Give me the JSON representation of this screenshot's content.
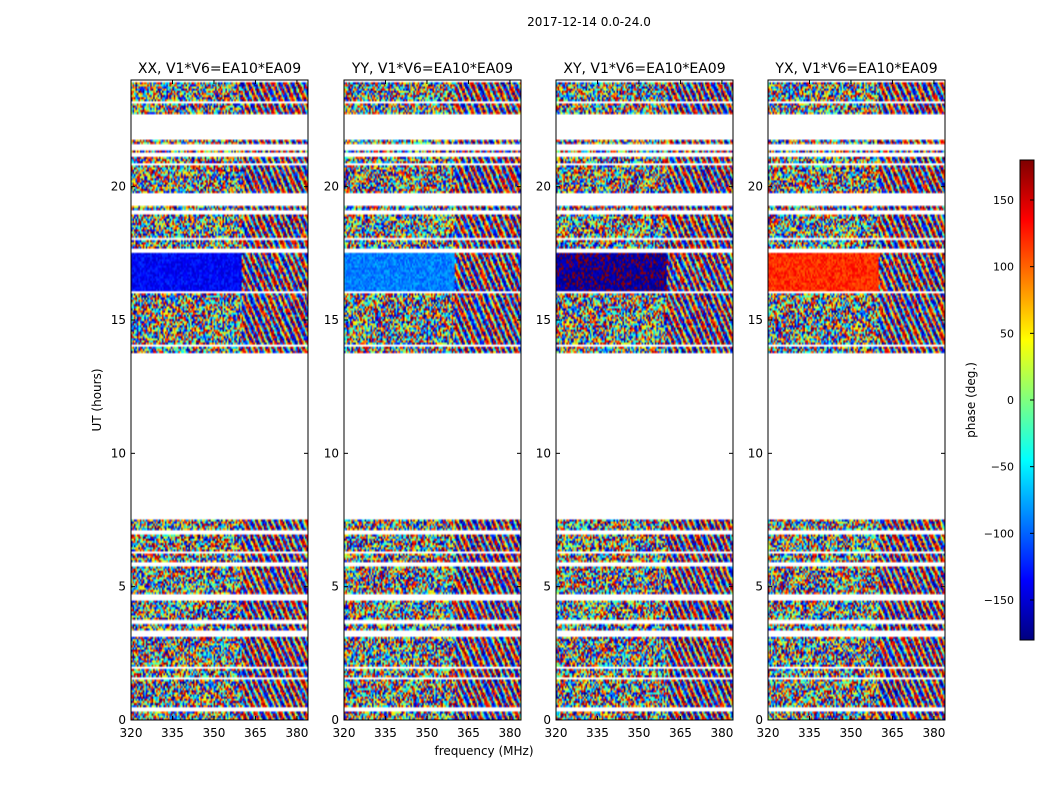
{
  "chart_data": {
    "type": "heatmap",
    "suptitle": "2017-12-14 0.0-24.0",
    "xlabel": "frequency (MHz)",
    "ylabel": "UT (hours)",
    "xlim": [
      320,
      384
    ],
    "ylim": [
      0,
      24
    ],
    "xticks": [
      320,
      335,
      350,
      365,
      380
    ],
    "yticks": [
      0,
      5,
      10,
      15,
      20
    ],
    "colorbar": {
      "label": "phase (deg.)",
      "range": [
        -180,
        180
      ],
      "ticks": [
        150,
        100,
        50,
        0,
        -50,
        -100,
        -150
      ],
      "tick_labels": [
        "150",
        "100",
        "50",
        "0",
        "−50",
        "−100",
        "−150"
      ],
      "colormap": [
        "#00007f",
        "#0000ff",
        "#007fff",
        "#00ffff",
        "#7fff7f",
        "#ffff00",
        "#ff7f00",
        "#ff0000",
        "#7f0000"
      ]
    },
    "panels": [
      {
        "title": "XX, V1*V6=EA10*EA09",
        "ordered_phase_deg": -135,
        "show_xlabel": false,
        "show_ylabel": true
      },
      {
        "title": "YY, V1*V6=EA10*EA09",
        "ordered_phase_deg": -90,
        "show_xlabel": true,
        "show_ylabel": false
      },
      {
        "title": "XY, V1*V6=EA10*EA09",
        "ordered_phase_deg": -170,
        "show_xlabel": false,
        "show_ylabel": false
      },
      {
        "title": "YX, V1*V6=EA10*EA09",
        "ordered_phase_deg": 120,
        "show_xlabel": false,
        "show_ylabel": false
      }
    ],
    "data_blocks_ut_hours": [
      {
        "start": 0.0,
        "end": 0.3
      },
      {
        "start": 0.5,
        "end": 1.5
      },
      {
        "start": 1.6,
        "end": 1.9
      },
      {
        "start": 2.0,
        "end": 3.1
      },
      {
        "start": 3.4,
        "end": 3.6
      },
      {
        "start": 3.8,
        "end": 4.5
      },
      {
        "start": 4.7,
        "end": 5.8
      },
      {
        "start": 5.9,
        "end": 6.2
      },
      {
        "start": 6.3,
        "end": 7.0
      },
      {
        "start": 7.1,
        "end": 7.5
      },
      {
        "start": 13.8,
        "end": 14.0
      },
      {
        "start": 14.1,
        "end": 16.0
      },
      {
        "start": 16.1,
        "end": 17.5
      },
      {
        "start": 17.7,
        "end": 18.0
      },
      {
        "start": 18.1,
        "end": 19.0
      },
      {
        "start": 19.1,
        "end": 19.3
      },
      {
        "start": 19.8,
        "end": 20.8
      },
      {
        "start": 20.9,
        "end": 21.1
      },
      {
        "start": 21.3,
        "end": 21.4
      },
      {
        "start": 21.6,
        "end": 21.8
      },
      {
        "start": 22.7,
        "end": 23.1
      },
      {
        "start": 23.2,
        "end": 23.9
      }
    ],
    "ordered_region": {
      "ut_start": 16.1,
      "ut_end": 17.5
    }
  }
}
